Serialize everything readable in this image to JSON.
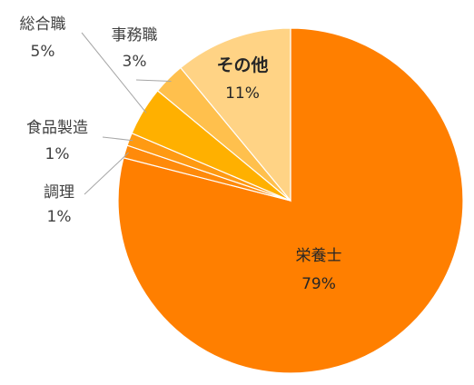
{
  "chart_data": {
    "type": "pie",
    "title": "",
    "slices": [
      {
        "name": "栄養士",
        "percent_label": "79%",
        "value": 79,
        "color": "#FF7F00"
      },
      {
        "name": "調理",
        "percent_label": "1%",
        "value": 1.2,
        "color": "#FF8A0A"
      },
      {
        "name": "食品製造",
        "percent_label": "1%",
        "value": 1.2,
        "color": "#FF9A12"
      },
      {
        "name": "総合職",
        "percent_label": "5%",
        "value": 4.6,
        "color": "#FFB000"
      },
      {
        "name": "事務職",
        "percent_label": "3%",
        "value": 3.0,
        "color": "#FFC04D"
      },
      {
        "name": "その他",
        "percent_label": "11%",
        "value": 11,
        "color": "#FFD385"
      }
    ],
    "start": "12 o'clock",
    "direction": "clockwise",
    "legend": "none",
    "data_labels": "category name and percent"
  }
}
